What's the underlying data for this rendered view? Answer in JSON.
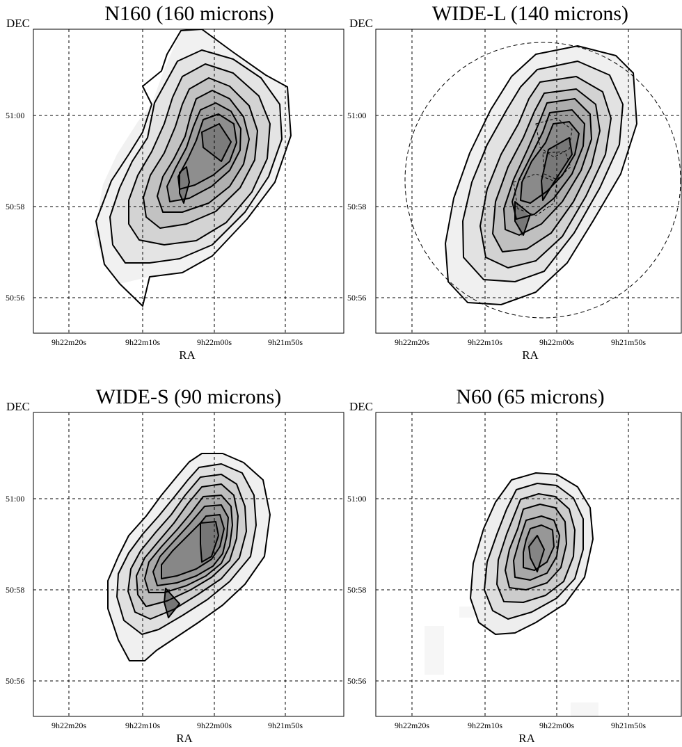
{
  "chart_data": [
    {
      "type": "heatmap",
      "title": "N160 (160 microns)",
      "xlabel": "RA",
      "ylabel": "DEC",
      "x_ticks": [
        "9h22m20s",
        "9h22m10s",
        "9h22m00s",
        "9h21m50s"
      ],
      "y_ticks": [
        "50:56",
        "50:58",
        "51:00"
      ],
      "grid": true,
      "peaks": [
        "9h22m00s, 50:59.3",
        "9h22m05s, 50:58.4"
      ],
      "aperture_circle": false
    },
    {
      "type": "heatmap",
      "title": "WIDE-L (140 microns)",
      "xlabel": "RA",
      "ylabel": "DEC",
      "x_ticks": [
        "9h22m20s",
        "9h22m10s",
        "9h22m00s",
        "9h21m50s"
      ],
      "y_ticks": [
        "50:56",
        "50:58",
        "51:00"
      ],
      "grid": true,
      "peaks": [
        "9h22m02s, 50:59.0",
        "9h22m06s, 50:57.8"
      ],
      "aperture_circle": true
    },
    {
      "type": "heatmap",
      "title": "WIDE-S (90 microns)",
      "xlabel": "RA",
      "ylabel": "DEC",
      "x_ticks": [
        "9h22m20s",
        "9h22m10s",
        "9h22m00s",
        "9h21m50s"
      ],
      "y_ticks": [
        "50:56",
        "50:58",
        "51:00"
      ],
      "grid": true,
      "peaks": [
        "9h22m02s, 50:59.0",
        "9h22m07s, 50:57.6"
      ],
      "aperture_circle": false
    },
    {
      "type": "heatmap",
      "title": "N60 (65 microns)",
      "xlabel": "RA",
      "ylabel": "DEC",
      "x_ticks": [
        "9h22m20s",
        "9h22m10s",
        "9h22m00s",
        "9h21m50s"
      ],
      "y_ticks": [
        "50:56",
        "50:58",
        "51:00"
      ],
      "grid": true,
      "peaks": [
        "9h22m03s, 50:58.7"
      ],
      "aperture_circle": false
    }
  ]
}
